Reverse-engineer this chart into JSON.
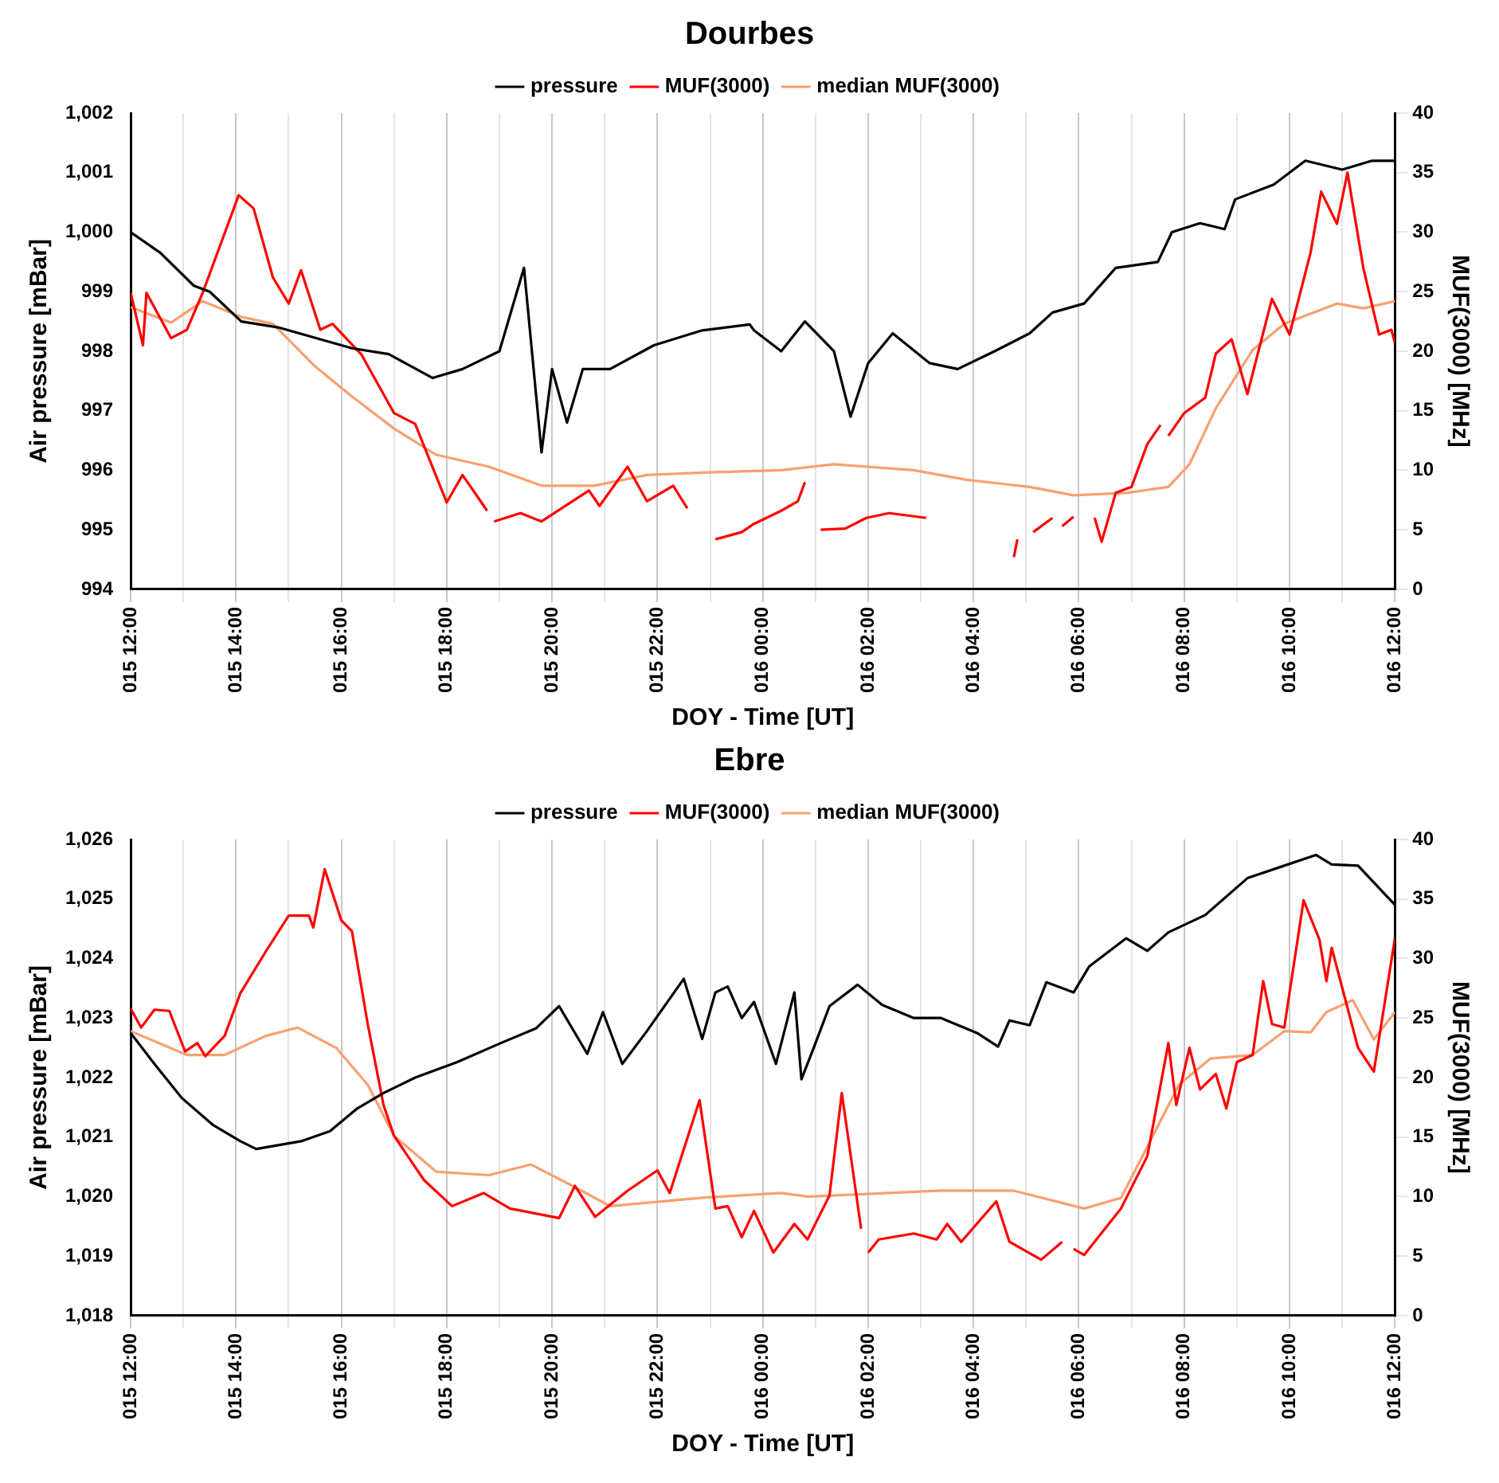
{
  "chart_data": [
    {
      "type": "line",
      "title": "Dourbes",
      "xlabel": "DOY - Time [UT]",
      "ylabel": "Air pressure [mBar]",
      "y2label": "MUF(3000) [MHz]",
      "xlim": [
        "--01-15T12:00",
        "--01-16T12:00"
      ],
      "xticks": [
        {
          "value": "--01-15T12:00",
          "label": "015 12:00"
        },
        {
          "value": "--01-15T13:00",
          "label": null
        },
        {
          "value": "--01-15T14:00",
          "label": "015 14:00"
        },
        {
          "value": "--01-15T15:00",
          "label": null
        },
        {
          "value": "--01-15T16:00",
          "label": "015 16:00"
        },
        {
          "value": "--01-15T17:00",
          "label": null
        },
        {
          "value": "--01-15T18:00",
          "label": "015 18:00"
        },
        {
          "value": "--01-15T19:00",
          "label": null
        },
        {
          "value": "--01-15T20:00",
          "label": "015 20:00"
        },
        {
          "value": "--01-15T21:00",
          "label": null
        },
        {
          "value": "--01-15T22:00",
          "label": "015 22:00"
        },
        {
          "value": "--01-15T23:00",
          "label": null
        },
        {
          "value": "--01-16T00:00",
          "label": "016 00:00"
        },
        {
          "value": "--01-16T01:00",
          "label": null
        },
        {
          "value": "--01-16T02:00",
          "label": "016 02:00"
        },
        {
          "value": "--01-16T03:00",
          "label": null
        },
        {
          "value": "--01-16T04:00",
          "label": "016 04:00"
        },
        {
          "value": "--01-16T05:00",
          "label": null
        },
        {
          "value": "--01-16T06:00",
          "label": "016 06:00"
        },
        {
          "value": "--01-16T07:00",
          "label": null
        },
        {
          "value": "--01-16T08:00",
          "label": "016 08:00"
        },
        {
          "value": "--01-16T09:00",
          "label": null
        },
        {
          "value": "--01-16T10:00",
          "label": "016 10:00"
        },
        {
          "value": "--01-16T11:00",
          "label": null
        },
        {
          "value": "--01-16T12:00",
          "label": "016 12:00"
        }
      ],
      "ylim": [
        994,
        1002
      ],
      "yticks": [
        994,
        995,
        996,
        997,
        998,
        999,
        {
          "value": 1000,
          "label": "1,000"
        },
        {
          "value": 1001,
          "label": "1,001"
        },
        {
          "value": 1002,
          "label": "1,002"
        }
      ],
      "y2lim": [
        0,
        40
      ],
      "y2ticks": [
        0,
        5,
        10,
        15,
        20,
        25,
        30,
        35,
        40
      ],
      "grid": "x",
      "legend": "top",
      "marker": "none",
      "series": [
        {
          "name": "pressure",
          "color": "#000000",
          "x": [
            "--01-15T12:00",
            "--01-15T12:34",
            "--01-15T13:12",
            "--01-15T13:30",
            "--01-15T14:06",
            "--01-15T14:48",
            "--01-15T15:36",
            "--01-15T16:12",
            "--01-15T16:54",
            "--01-15T17:44",
            "--01-15T18:18",
            "--01-15T19:00",
            "--01-15T19:28",
            "--01-15T19:48",
            "--01-15T20:00",
            "--01-15T20:17",
            "--01-15T20:35",
            "--01-15T21:06",
            "--01-15T21:56",
            "--01-15T22:51",
            "--01-15T23:45",
            "--01-15T23:50",
            "--01-16T00:21",
            "--01-16T00:48",
            "--01-16T01:21",
            "--01-16T01:40",
            "--01-16T02:00",
            "--01-16T02:28",
            "--01-16T03:10",
            "--01-16T03:42",
            "--01-16T04:24",
            "--01-16T05:04",
            "--01-16T05:30",
            "--01-16T06:06",
            "--01-16T06:42",
            "--01-16T07:30",
            "--01-16T07:46",
            "--01-16T08:18",
            "--01-16T08:46",
            "--01-16T08:58",
            "--01-16T09:42",
            "--01-16T10:18",
            "--01-16T11:00",
            "--01-16T11:34",
            "--01-16T12:00"
          ],
          "values": [
            1000.0,
            999.65,
            999.1,
            999.0,
            998.5,
            998.4,
            998.2,
            998.05,
            997.95,
            997.55,
            997.7,
            998.0,
            999.4,
            996.3,
            997.7,
            996.8,
            997.7,
            997.7,
            998.1,
            998.35,
            998.45,
            998.35,
            998.0,
            998.5,
            998.0,
            996.9,
            997.8,
            998.3,
            997.8,
            997.7,
            998.0,
            998.3,
            998.65,
            998.8,
            999.4,
            999.5,
            1000.0,
            1000.15,
            1000.05,
            1000.55,
            1000.8,
            1001.2,
            1001.05,
            1001.2,
            1001.2
          ]
        },
        {
          "name": "MUF(3000)",
          "color": "#ff0000",
          "axis": "y2",
          "x": [
            "--01-15T12:00",
            "--01-15T12:14",
            "--01-15T12:18",
            "--01-15T12:46",
            "--01-15T13:04",
            "--01-15T13:22",
            "--01-15T14:03",
            "--01-15T14:20",
            "--01-15T14:42",
            "--01-15T15:00",
            "--01-15T15:14",
            "--01-15T15:36",
            "--01-15T15:50",
            "--01-15T16:23",
            "--01-15T17:00",
            "--01-15T17:24",
            "--01-15T18:00",
            "--01-15T18:18",
            "--01-15T18:46",
            "--01-15T18:50",
            "--01-15T18:54",
            "--01-15T19:24",
            "--01-15T19:48",
            "--01-15T20:42",
            "--01-15T20:54",
            "--01-15T21:26",
            "--01-15T21:48",
            "--01-15T22:18",
            "--01-15T22:34",
            "--01-15T22:48",
            "--01-15T23:06",
            "--01-15T23:36",
            "--01-15T23:50",
            "--01-16T00:21",
            "--01-16T00:40",
            "--01-16T00:48",
            "--01-16T00:57",
            "--01-16T01:06",
            "--01-16T01:34",
            "--01-16T01:58",
            "--01-16T02:24",
            "--01-16T03:06",
            "--01-16T04:00",
            "--01-16T04:46",
            "--01-16T04:50",
            "--01-16T05:00",
            "--01-16T05:08",
            "--01-16T05:30",
            "--01-16T05:36",
            "--01-16T05:41",
            "--01-16T05:54",
            "--01-16T06:06",
            "--01-16T06:18",
            "--01-16T06:26",
            "--01-16T06:42",
            "--01-16T07:00",
            "--01-16T07:18",
            "--01-16T07:33",
            "--01-16T07:37",
            "--01-16T07:42",
            "--01-16T08:00",
            "--01-16T08:24",
            "--01-16T08:36",
            "--01-16T08:54",
            "--01-16T09:12",
            "--01-16T09:40",
            "--01-16T10:00",
            "--01-16T10:24",
            "--01-16T10:36",
            "--01-16T10:54",
            "--01-16T11:06",
            "--01-16T11:24",
            "--01-16T11:42",
            "--01-16T11:56",
            "--01-16T12:00"
          ],
          "values": [
            24.9,
            20.5,
            24.9,
            21.1,
            21.8,
            24.9,
            33.1,
            32.0,
            26.2,
            24.0,
            26.8,
            21.8,
            22.3,
            19.7,
            14.8,
            13.9,
            7.3,
            9.6,
            6.6,
            null,
            5.7,
            6.4,
            5.7,
            8.3,
            7.0,
            10.3,
            7.4,
            8.7,
            6.8,
            null,
            4.2,
            4.8,
            5.5,
            6.6,
            7.4,
            9.0,
            null,
            5.0,
            5.1,
            6.0,
            6.4,
            6.0,
            null,
            2.7,
            4.2,
            null,
            4.8,
            6.0,
            null,
            5.3,
            6.1,
            null,
            6.0,
            4.0,
            8.1,
            8.6,
            12.2,
            13.8,
            null,
            12.9,
            14.8,
            16.1,
            19.8,
            21.0,
            16.4,
            24.4,
            21.4,
            28.3,
            33.4,
            30.7,
            35.0,
            27.0,
            21.4,
            21.8,
            20.7
          ]
        },
        {
          "name": "median MUF(3000)",
          "color": "#f8a070",
          "axis": "y2",
          "x": [
            "--01-15T12:00",
            "--01-15T12:46",
            "--01-15T13:22",
            "--01-15T14:05",
            "--01-15T14:42",
            "--01-15T15:29",
            "--01-15T16:12",
            "--01-15T17:00",
            "--01-15T17:48",
            "--01-15T18:48",
            "--01-15T19:48",
            "--01-15T20:48",
            "--01-15T21:48",
            "--01-15T22:51",
            "--01-16T00:21",
            "--01-16T01:21",
            "--01-16T02:52",
            "--01-16T03:52",
            "--01-16T05:04",
            "--01-16T05:54",
            "--01-16T06:54",
            "--01-16T07:42",
            "--01-16T08:06",
            "--01-16T08:36",
            "--01-16T09:18",
            "--01-16T09:54",
            "--01-16T10:54",
            "--01-16T11:24",
            "--01-16T12:00"
          ],
          "values": [
            23.7,
            22.4,
            24.2,
            22.9,
            22.3,
            18.8,
            16.2,
            13.5,
            11.3,
            10.3,
            8.7,
            8.7,
            9.6,
            9.8,
            10.0,
            10.5,
            10.0,
            9.2,
            8.6,
            7.9,
            8.1,
            8.6,
            10.5,
            15.2,
            20.1,
            22.3,
            24.0,
            23.6,
            24.2
          ]
        }
      ]
    },
    {
      "type": "line",
      "title": "Ebre",
      "xlabel": "DOY - Time [UT]",
      "ylabel": "Air pressure [mBar]",
      "y2label": "MUF(3000) [MHz]",
      "xlim": [
        "--01-15T12:00",
        "--01-16T12:00"
      ],
      "xticks": [
        {
          "value": "--01-15T12:00",
          "label": "015 12:00"
        },
        {
          "value": "--01-15T13:00",
          "label": null
        },
        {
          "value": "--01-15T14:00",
          "label": "015 14:00"
        },
        {
          "value": "--01-15T15:00",
          "label": null
        },
        {
          "value": "--01-15T16:00",
          "label": "015 16:00"
        },
        {
          "value": "--01-15T17:00",
          "label": null
        },
        {
          "value": "--01-15T18:00",
          "label": "015 18:00"
        },
        {
          "value": "--01-15T19:00",
          "label": null
        },
        {
          "value": "--01-15T20:00",
          "label": "015 20:00"
        },
        {
          "value": "--01-15T21:00",
          "label": null
        },
        {
          "value": "--01-15T22:00",
          "label": "015 22:00"
        },
        {
          "value": "--01-15T23:00",
          "label": null
        },
        {
          "value": "--01-16T00:00",
          "label": "016 00:00"
        },
        {
          "value": "--01-16T01:00",
          "label": null
        },
        {
          "value": "--01-16T02:00",
          "label": "016 02:00"
        },
        {
          "value": "--01-16T03:00",
          "label": null
        },
        {
          "value": "--01-16T04:00",
          "label": "016 04:00"
        },
        {
          "value": "--01-16T05:00",
          "label": null
        },
        {
          "value": "--01-16T06:00",
          "label": "016 06:00"
        },
        {
          "value": "--01-16T07:00",
          "label": null
        },
        {
          "value": "--01-16T08:00",
          "label": "016 08:00"
        },
        {
          "value": "--01-16T09:00",
          "label": null
        },
        {
          "value": "--01-16T10:00",
          "label": "016 10:00"
        },
        {
          "value": "--01-16T11:00",
          "label": null
        },
        {
          "value": "--01-16T12:00",
          "label": "016 12:00"
        }
      ],
      "ylim": [
        1018,
        1026
      ],
      "yticks": [
        {
          "value": 1018,
          "label": "1,018"
        },
        {
          "value": 1019,
          "label": "1,019"
        },
        {
          "value": 1020,
          "label": "1,020"
        },
        {
          "value": 1021,
          "label": "1,021"
        },
        {
          "value": 1022,
          "label": "1,022"
        },
        {
          "value": 1023,
          "label": "1,023"
        },
        {
          "value": 1024,
          "label": "1,024"
        },
        {
          "value": 1025,
          "label": "1,025"
        },
        {
          "value": 1026,
          "label": "1,026"
        }
      ],
      "y2lim": [
        0,
        40
      ],
      "y2ticks": [
        0,
        5,
        10,
        15,
        20,
        25,
        30,
        35,
        40
      ],
      "grid": "x",
      "legend": "top",
      "marker": "none",
      "series": [
        {
          "name": "pressure",
          "color": "#000000",
          "x": [
            "--01-15T12:00",
            "--01-15T12:27",
            "--01-15T12:58",
            "--01-15T13:34",
            "--01-15T14:05",
            "--01-15T14:23",
            "--01-15T15:14",
            "--01-15T15:47",
            "--01-15T16:18",
            "--01-15T16:48",
            "--01-15T17:24",
            "--01-15T18:12",
            "--01-15T19:00",
            "--01-15T19:42",
            "--01-15T20:08",
            "--01-15T20:40",
            "--01-15T20:58",
            "--01-15T21:20",
            "--01-15T21:48",
            "--01-15T22:30",
            "--01-15T22:51",
            "--01-15T23:06",
            "--01-15T23:20",
            "--01-15T23:36",
            "--01-15T23:50",
            "--01-16T00:15",
            "--01-16T00:36",
            "--01-16T00:44",
            "--01-16T00:58",
            "--01-16T01:16",
            "--01-16T01:48",
            "--01-16T02:16",
            "--01-16T02:52",
            "--01-16T03:23",
            "--01-16T04:04",
            "--01-16T04:28",
            "--01-16T04:41",
            "--01-16T05:04",
            "--01-16T05:23",
            "--01-16T05:54",
            "--01-16T06:12",
            "--01-16T06:54",
            "--01-16T07:18",
            "--01-16T07:42",
            "--01-16T08:24",
            "--01-16T09:12",
            "--01-16T09:54",
            "--01-16T10:30",
            "--01-16T10:48",
            "--01-16T11:18",
            "--01-16T12:00"
          ],
          "values": [
            1022.75,
            1022.23,
            1021.66,
            1021.2,
            1020.93,
            1020.8,
            1020.93,
            1021.1,
            1021.48,
            1021.74,
            1022.0,
            1022.26,
            1022.57,
            1022.83,
            1023.2,
            1022.4,
            1023.1,
            1022.23,
            1022.78,
            1023.66,
            1022.65,
            1023.43,
            1023.53,
            1023.0,
            1023.27,
            1022.23,
            1023.43,
            1021.97,
            1022.5,
            1023.2,
            1023.56,
            1023.22,
            1023.0,
            1023.0,
            1022.75,
            1022.52,
            1022.96,
            1022.88,
            1023.6,
            1023.43,
            1023.87,
            1024.34,
            1024.13,
            1024.44,
            1024.73,
            1025.35,
            1025.56,
            1025.74,
            1025.58,
            1025.56,
            1024.9
          ]
        },
        {
          "name": "MUF(3000)",
          "color": "#ff0000",
          "axis": "y2",
          "x": [
            "--01-15T12:00",
            "--01-15T12:12",
            "--01-15T12:27",
            "--01-15T12:44",
            "--01-15T13:02",
            "--01-15T13:16",
            "--01-15T13:25",
            "--01-15T13:47",
            "--01-15T14:05",
            "--01-15T14:34",
            "--01-15T15:00",
            "--01-15T15:23",
            "--01-15T15:28",
            "--01-15T15:41",
            "--01-15T16:00",
            "--01-15T16:12",
            "--01-15T16:30",
            "--01-15T16:48",
            "--01-15T17:00",
            "--01-15T17:34",
            "--01-15T18:06",
            "--01-15T18:42",
            "--01-15T19:12",
            "--01-15T20:08",
            "--01-15T20:26",
            "--01-15T20:49",
            "--01-15T21:26",
            "--01-15T22:00",
            "--01-15T22:14",
            "--01-15T22:48",
            "--01-15T23:06",
            "--01-15T23:20",
            "--01-15T23:36",
            "--01-15T23:50",
            "--01-16T00:12",
            "--01-16T00:36",
            "--01-16T00:51",
            "--01-16T01:16",
            "--01-16T01:30",
            "--01-16T01:52",
            "--01-16T01:56",
            "--01-16T02:00",
            "--01-16T02:12",
            "--01-16T02:52",
            "--01-16T03:18",
            "--01-16T03:30",
            "--01-16T03:46",
            "--01-16T04:26",
            "--01-16T04:41",
            "--01-16T05:17",
            "--01-16T05:41",
            "--01-16T05:48",
            "--01-16T05:54",
            "--01-16T06:06",
            "--01-16T06:48",
            "--01-16T07:18",
            "--01-16T07:42",
            "--01-16T07:51",
            "--01-16T08:06",
            "--01-16T08:18",
            "--01-16T08:36",
            "--01-16T08:48",
            "--01-16T09:00",
            "--01-16T09:18",
            "--01-16T09:30",
            "--01-16T09:40",
            "--01-16T09:54",
            "--01-16T10:16",
            "--01-16T10:34",
            "--01-16T10:42",
            "--01-16T10:48",
            "--01-16T11:18",
            "--01-16T11:36",
            "--01-16T12:00"
          ],
          "values": [
            25.8,
            24.2,
            25.7,
            25.6,
            22.2,
            22.9,
            21.8,
            23.5,
            27.1,
            30.6,
            33.6,
            33.6,
            32.6,
            37.5,
            33.2,
            32.3,
            24.5,
            17.7,
            15.1,
            11.4,
            9.2,
            10.3,
            9.0,
            8.2,
            10.9,
            8.3,
            10.5,
            12.2,
            10.3,
            18.1,
            9.0,
            9.2,
            6.6,
            8.8,
            5.3,
            7.7,
            6.4,
            10.1,
            18.7,
            7.3,
            null,
            5.3,
            6.4,
            6.9,
            6.4,
            7.7,
            6.2,
            9.6,
            6.2,
            4.7,
            6.2,
            null,
            5.6,
            5.1,
            9.0,
            13.4,
            22.9,
            17.7,
            22.5,
            19.0,
            20.3,
            17.4,
            21.3,
            21.9,
            28.1,
            24.5,
            24.2,
            34.9,
            31.6,
            28.1,
            30.9,
            22.5,
            20.5,
            31.7
          ]
        },
        {
          "name": "median MUF(3000)",
          "color": "#f8a070",
          "axis": "y2",
          "x": [
            "--01-15T12:00",
            "--01-15T13:04",
            "--01-15T13:47",
            "--01-15T14:34",
            "--01-15T15:10",
            "--01-15T15:54",
            "--01-15T16:30",
            "--01-15T17:00",
            "--01-15T17:48",
            "--01-15T18:48",
            "--01-15T19:36",
            "--01-15T20:26",
            "--01-15T21:06",
            "--01-15T22:51",
            "--01-16T00:21",
            "--01-16T00:51",
            "--01-16T03:23",
            "--01-16T04:46",
            "--01-16T06:06",
            "--01-16T06:48",
            "--01-16T07:18",
            "--01-16T07:54",
            "--01-16T08:30",
            "--01-16T09:18",
            "--01-16T09:54",
            "--01-16T10:24",
            "--01-16T10:42",
            "--01-16T11:12",
            "--01-16T11:36",
            "--01-16T12:00"
          ],
          "values": [
            23.9,
            21.9,
            21.9,
            23.5,
            24.2,
            22.5,
            19.4,
            15.1,
            12.1,
            11.8,
            12.7,
            10.8,
            9.2,
            9.9,
            10.3,
            10.0,
            10.5,
            10.5,
            9.0,
            9.9,
            14.2,
            19.4,
            21.6,
            21.9,
            23.9,
            23.8,
            25.5,
            26.5,
            23.2,
            25.5
          ]
        }
      ]
    }
  ]
}
